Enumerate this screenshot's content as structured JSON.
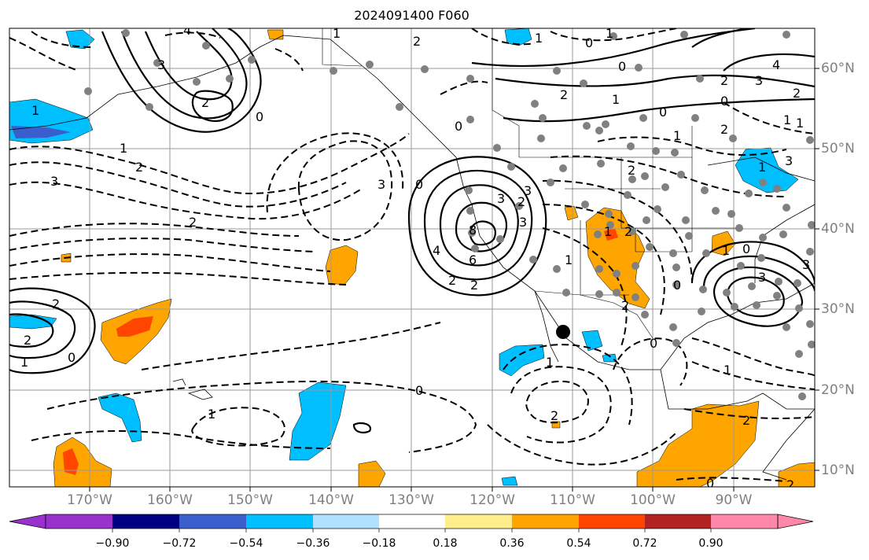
{
  "title": "2024091400 F060",
  "map": {
    "projection": "plate-carree",
    "lon_range": [
      -180,
      -80
    ],
    "lat_range": [
      7,
      64
    ],
    "lat_labels": [
      "60°N",
      "50°N",
      "40°N",
      "30°N",
      "20°N",
      "10°N"
    ],
    "lon_labels": [
      "170°W",
      "160°W",
      "150°W",
      "140°W",
      "130°W",
      "120°W",
      "110°W",
      "100°W",
      "90°W"
    ],
    "contour_labels": [
      "1",
      "3",
      "4",
      "2",
      "0",
      "1",
      "3",
      "2",
      "1",
      "2",
      "1",
      "3",
      "2",
      "0",
      "2",
      "1",
      "0",
      "0",
      "2",
      "1",
      "4",
      "2",
      "3",
      "1",
      "0",
      "2",
      "1",
      "3",
      "2",
      "3",
      "2",
      "3",
      "8",
      "6",
      "4",
      "2",
      "0",
      "1",
      "2",
      "0",
      "3",
      "2",
      "1",
      "2",
      "0",
      "1",
      "3",
      "2",
      "1",
      "0",
      "2",
      "2",
      "0",
      "1",
      "0",
      "0",
      "2",
      "3",
      "1",
      "1",
      "1",
      "1",
      "0",
      "2"
    ],
    "marker": "black-dot-station"
  },
  "colorbar": {
    "ticks": [
      "−0.90",
      "−0.72",
      "−0.54",
      "−0.36",
      "−0.18",
      "0.18",
      "0.36",
      "0.54",
      "0.72",
      "0.90"
    ],
    "colors": [
      "#9932cc",
      "#000080",
      "#3a5fcd",
      "#00bfff",
      "#b0e2ff",
      "#ffffff",
      "#ffec8b",
      "#ffa500",
      "#ff4500",
      "#b22222",
      "#ff88aa"
    ]
  }
}
